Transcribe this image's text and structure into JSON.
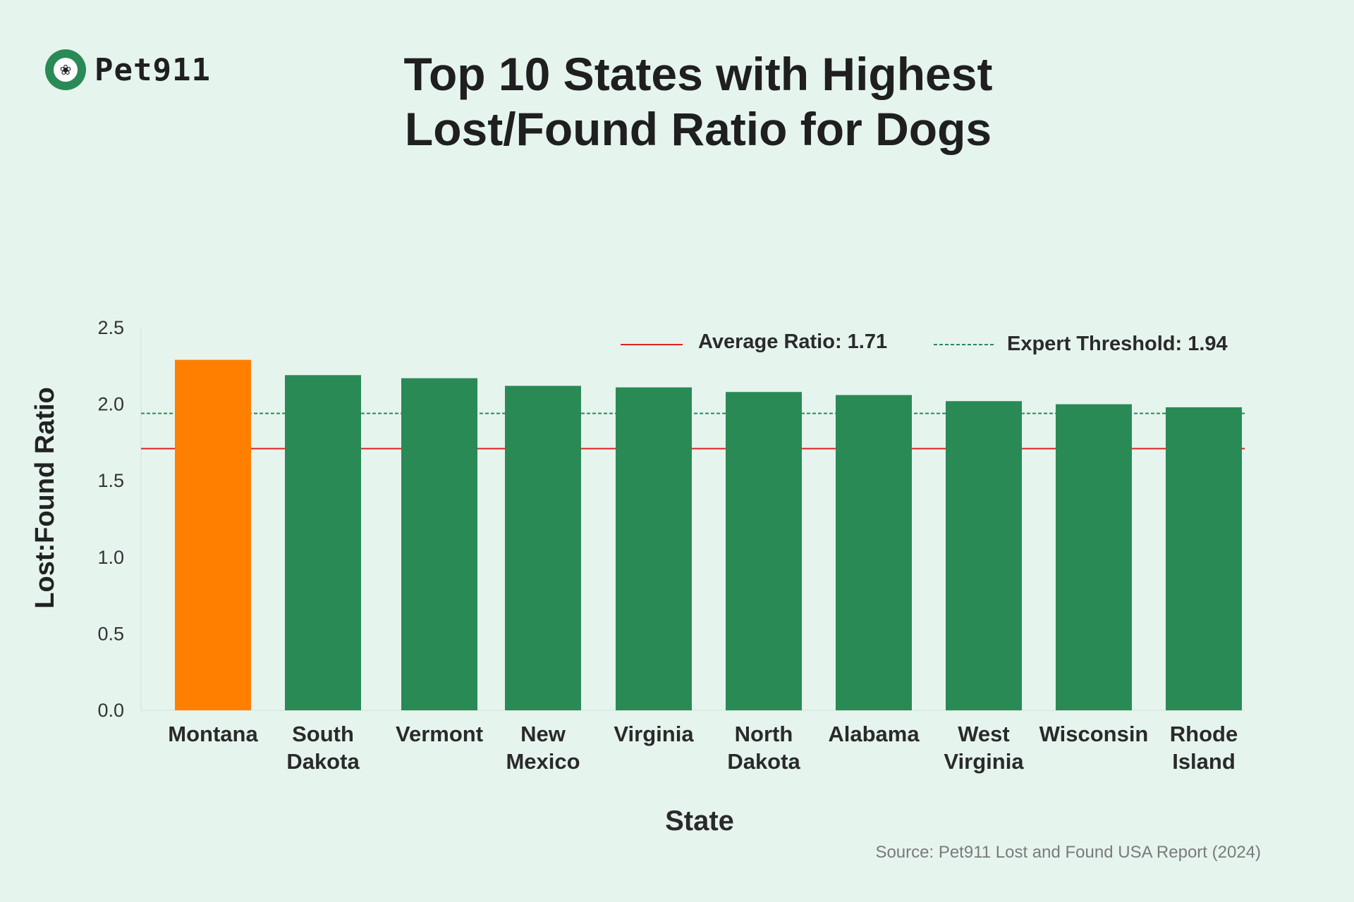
{
  "logo": {
    "icon": "paw-icon",
    "text": "Pet911",
    "color": "#2a8a55"
  },
  "chart_data": {
    "type": "bar",
    "title_lines": [
      "Top 10 States with Highest",
      "Lost/Found Ratio for Dogs"
    ],
    "xlabel": "State",
    "ylabel": "Lost:Found Ratio",
    "ylim": [
      0.0,
      2.5
    ],
    "yticks": [
      "0.0",
      "0.5",
      "1.0",
      "1.5",
      "2.0",
      "2.5"
    ],
    "categories": [
      [
        "Montana"
      ],
      [
        "South",
        "Dakota"
      ],
      [
        "Vermont"
      ],
      [
        "New",
        "Mexico"
      ],
      [
        "Virginia"
      ],
      [
        "North",
        "Dakota"
      ],
      [
        "Alabama"
      ],
      [
        "West",
        "Virginia"
      ],
      [
        "Wisconsin"
      ],
      [
        "Rhode",
        "Island"
      ]
    ],
    "values": [
      2.29,
      2.19,
      2.17,
      2.12,
      2.11,
      2.08,
      2.06,
      2.02,
      2.0,
      1.98
    ],
    "bar_colors": [
      "#ff7f00",
      "#2a8a55",
      "#2a8a55",
      "#2a8a55",
      "#2a8a55",
      "#2a8a55",
      "#2a8a55",
      "#2a8a55",
      "#2a8a55",
      "#2a8a55"
    ],
    "reference_lines": [
      {
        "label": "Average Ratio: 1.71",
        "value": 1.71,
        "color": "#e02020",
        "style": "solid"
      },
      {
        "label": "Expert Threshold: 1.94",
        "value": 1.94,
        "color": "#2a8a55",
        "style": "dashed"
      }
    ],
    "grid": false,
    "legend_position": "top-right"
  },
  "source": "Source: Pet911 Lost and Found USA Report (2024)"
}
